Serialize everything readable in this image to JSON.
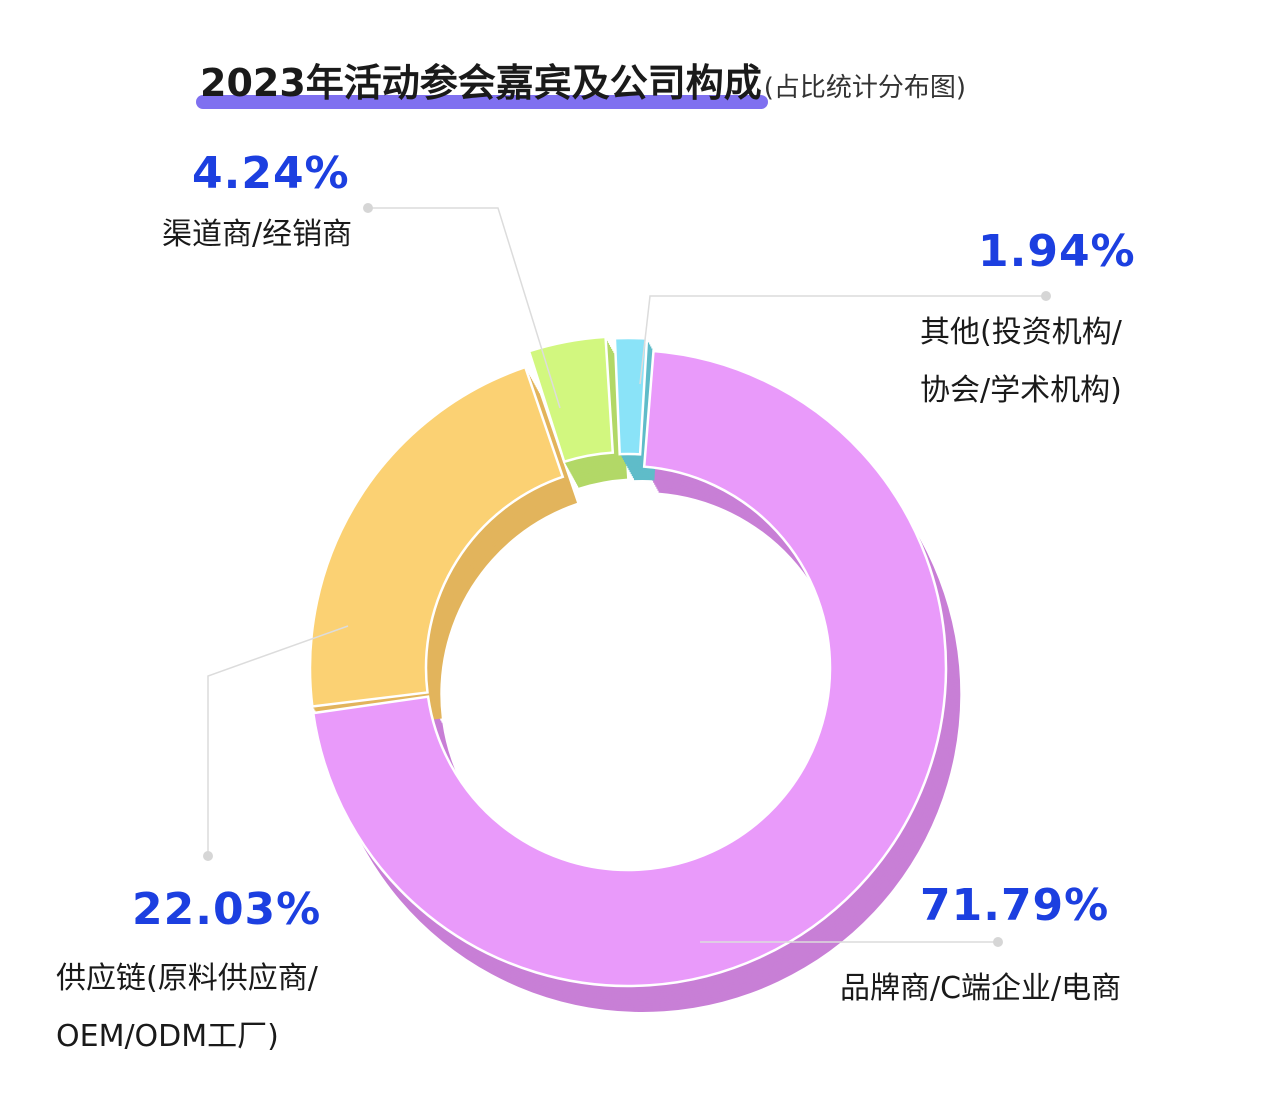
{
  "header": {
    "title": "2023年活动参会嘉宾及公司构成",
    "subtitle": "(占比统计分布图)"
  },
  "chart_data": {
    "type": "pie",
    "style": "donut",
    "slices": [
      {
        "label_lines": [
          "品牌商/C端企业/电商"
        ],
        "value": 71.79,
        "value_text": "71.79%",
        "color": "#e99afa",
        "side_color": "#c87fd6"
      },
      {
        "label_lines": [
          "供应链(原料供应商/",
          "OEM/ODM工厂)"
        ],
        "value": 22.03,
        "value_text": "22.03%",
        "color": "#fbd173",
        "side_color": "#e2b45c"
      },
      {
        "label_lines": [
          "渠道商/经销商"
        ],
        "value": 4.24,
        "value_text": "4.24%",
        "color": "#d2f77f",
        "side_color": "#b2d867"
      },
      {
        "label_lines": [
          "其他(投资机构/",
          "协会/学术机构)"
        ],
        "value": 1.94,
        "value_text": "1.94%",
        "color": "#8ae3f8",
        "side_color": "#5fbcc9"
      }
    ],
    "value_color": "#1c3fe0",
    "legend": "callouts"
  }
}
